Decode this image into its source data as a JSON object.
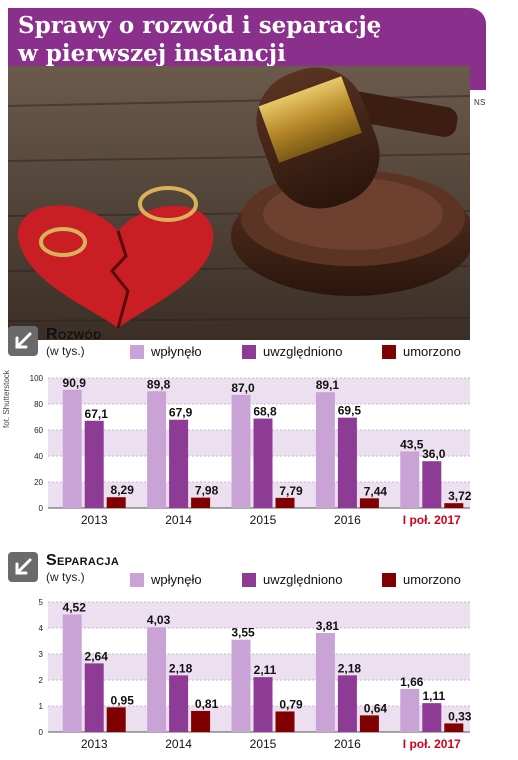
{
  "title": "Sprawy o rozwód i separację\nw pierwszej instancji",
  "photo_tag": "NS",
  "photo_credit": "fot. Shutterstock",
  "colors": {
    "header": "#8a2f8c",
    "received": "#c9a3d6",
    "granted": "#8e3b96",
    "discontinued": "#800000",
    "band": "#ece0f0",
    "highlight_label": "#d0021b"
  },
  "icons": [
    "arrow-down-left-icon"
  ],
  "legend": {
    "received": "wpłynęło",
    "granted": "uwzględniono",
    "discontinued": "umorzono"
  },
  "chart_data": [
    {
      "type": "bar",
      "title": "Rozwód",
      "subtitle": "(w tys.)",
      "categories": [
        "2013",
        "2014",
        "2015",
        "2016",
        "I poł. 2017"
      ],
      "highlight_category": "I poł. 2017",
      "ylim": [
        0,
        100
      ],
      "yticks": [
        0,
        20,
        40,
        60,
        80,
        100
      ],
      "grid": true,
      "series": [
        {
          "name": "wpłynęło",
          "key": "received",
          "values": [
            90.9,
            89.8,
            87.0,
            89.1,
            43.5
          ],
          "labels": [
            "90,9",
            "89,8",
            "87,0",
            "89,1",
            "43,5"
          ]
        },
        {
          "name": "uwzględniono",
          "key": "granted",
          "values": [
            67.1,
            67.9,
            68.8,
            69.5,
            36.0
          ],
          "labels": [
            "67,1",
            "67,9",
            "68,8",
            "69,5",
            "36,0"
          ]
        },
        {
          "name": "umorzono",
          "key": "discontinued",
          "values": [
            8.29,
            7.98,
            7.79,
            7.44,
            3.72
          ],
          "labels": [
            "8,29",
            "7,98",
            "7,79",
            "7,44",
            "3,72"
          ]
        }
      ]
    },
    {
      "type": "bar",
      "title": "Separacja",
      "subtitle": "(w tys.)",
      "categories": [
        "2013",
        "2014",
        "2015",
        "2016",
        "I poł. 2017"
      ],
      "highlight_category": "I poł. 2017",
      "ylim": [
        0,
        5
      ],
      "yticks": [
        0,
        1,
        2,
        3,
        4,
        5
      ],
      "grid": true,
      "series": [
        {
          "name": "wpłynęło",
          "key": "received",
          "values": [
            4.52,
            4.03,
            3.55,
            3.81,
            1.66
          ],
          "labels": [
            "4,52",
            "4,03",
            "3,55",
            "3,81",
            "1,66"
          ]
        },
        {
          "name": "uwzględniono",
          "key": "granted",
          "values": [
            2.64,
            2.18,
            2.11,
            2.18,
            1.11
          ],
          "labels": [
            "2,64",
            "2,18",
            "2,11",
            "2,18",
            "1,11"
          ]
        },
        {
          "name": "umorzono",
          "key": "discontinued",
          "values": [
            0.95,
            0.81,
            0.79,
            0.64,
            0.33
          ],
          "labels": [
            "0,95",
            "0,81",
            "0,79",
            "0,64",
            "0,33"
          ]
        }
      ]
    }
  ]
}
